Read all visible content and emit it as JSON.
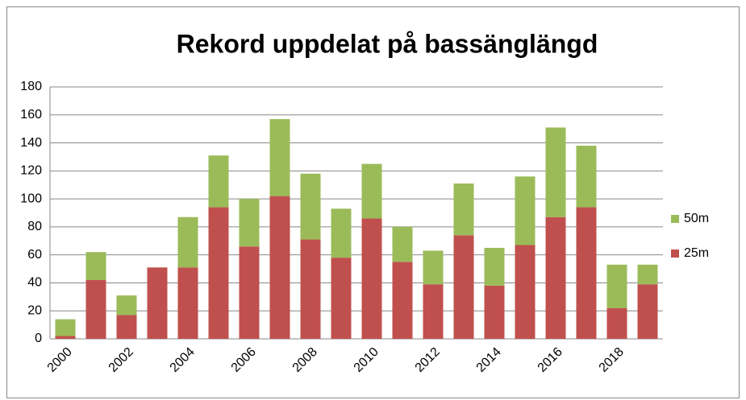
{
  "chart_data": {
    "type": "stacked_bar",
    "title": "Rekord uppdelat på bassänglängd",
    "categories": [
      "2000",
      null,
      "2002",
      null,
      "2004",
      null,
      "2006",
      null,
      "2008",
      null,
      "2010",
      null,
      "2012",
      null,
      "2014",
      null,
      "2016",
      null,
      "2018",
      null
    ],
    "series": [
      {
        "name": "25m",
        "color": "#c0504d",
        "values": [
          2,
          42,
          17,
          51,
          51,
          94,
          66,
          102,
          71,
          58,
          86,
          55,
          39,
          74,
          38,
          67,
          87,
          94,
          22,
          39
        ]
      },
      {
        "name": "50m",
        "color": "#9bbb59",
        "values": [
          12,
          20,
          14,
          0,
          36,
          37,
          34,
          55,
          47,
          35,
          39,
          25,
          24,
          37,
          27,
          49,
          64,
          44,
          31,
          14
        ]
      }
    ],
    "ylim": [
      0,
      180
    ],
    "yticks": [
      0,
      20,
      40,
      60,
      80,
      100,
      120,
      140,
      160,
      180
    ],
    "grid": true,
    "legend": "right"
  }
}
